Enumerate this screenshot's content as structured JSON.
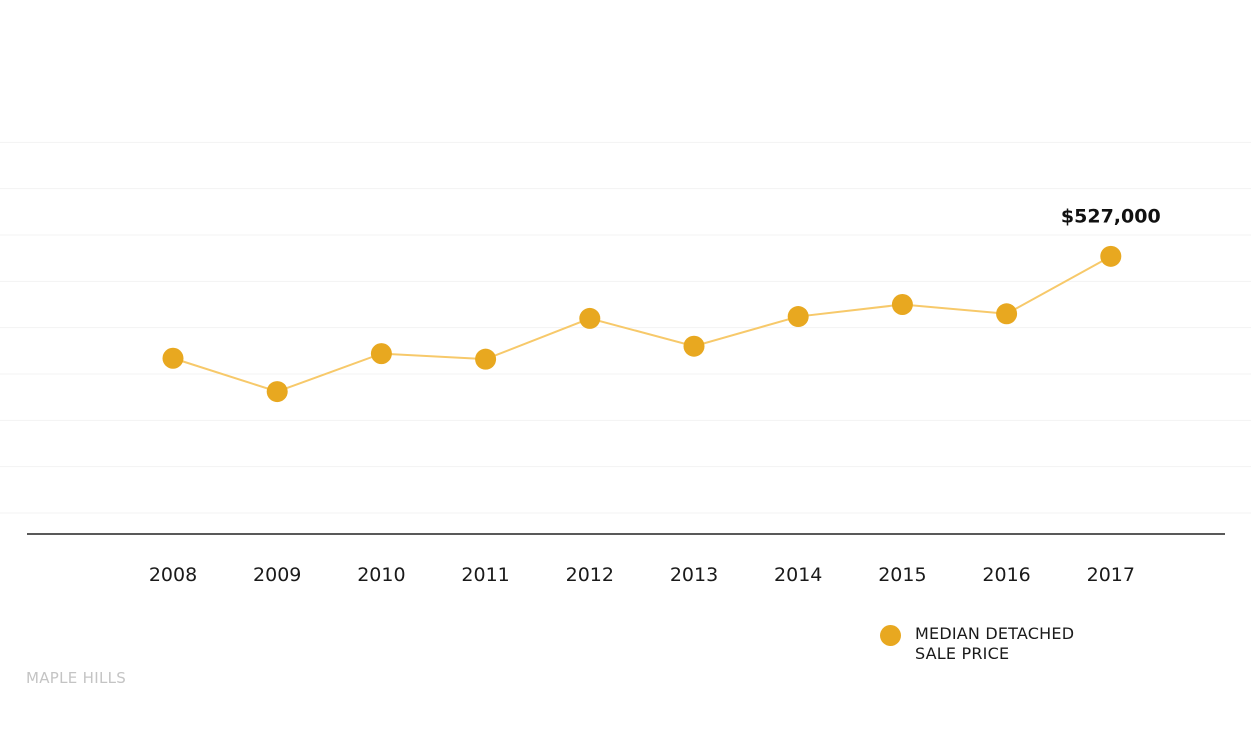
{
  "chart_data": {
    "type": "line",
    "categories": [
      "2008",
      "2009",
      "2010",
      "2011",
      "2012",
      "2013",
      "2014",
      "2015",
      "2016",
      "2017"
    ],
    "series": [
      {
        "name": "MEDIAN DETACHED SALE PRICE",
        "values": [
          417000,
          381000,
          422000,
          416000,
          460000,
          430000,
          462000,
          475000,
          465000,
          527000
        ],
        "color": "#e8a820",
        "line_color": "#f7c96a"
      }
    ],
    "annotations": [
      {
        "category": "2017",
        "value": 527000,
        "label": "$527,000"
      }
    ],
    "ylim": [
      250000,
      700000
    ],
    "yticks_labeled": false,
    "grid": true,
    "grid_color": "#f3f3f3",
    "axis_color": "#222222",
    "legend_placement": "bottom-right",
    "legend": {
      "line1": "MEDIAN DETACHED",
      "line2": "SALE PRICE"
    },
    "source": "MAPLE HILLS"
  }
}
